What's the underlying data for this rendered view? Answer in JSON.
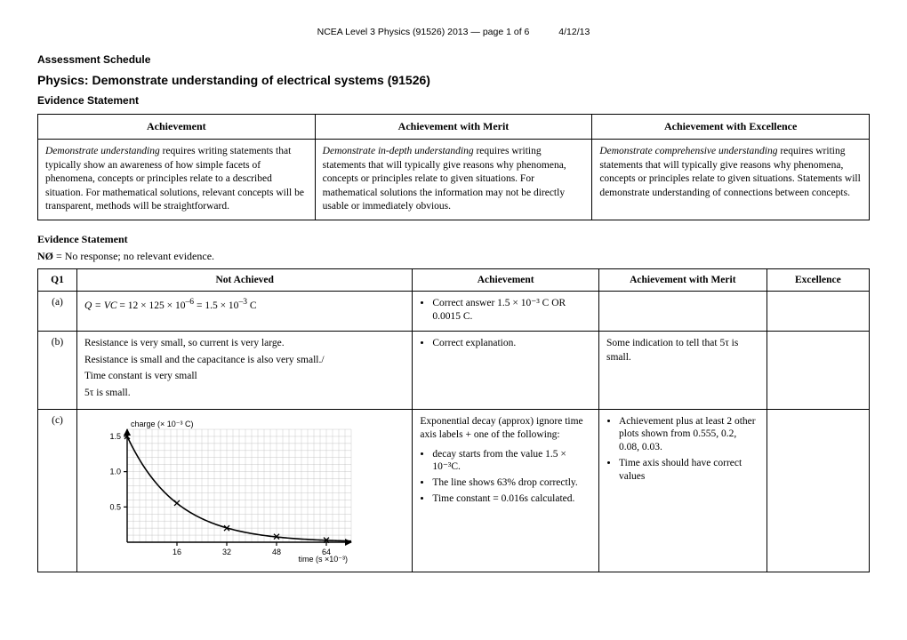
{
  "header": {
    "text": "NCEA Level 3 Physics (91526) 2013 — page 1 of 6",
    "date": "4/12/13"
  },
  "titles": {
    "schedule": "Assessment Schedule",
    "main": "Physics: Demonstrate understanding of electrical systems (91526)",
    "evidence": "Evidence Statement"
  },
  "criteria": {
    "headers": [
      "Achievement",
      "Achievement with Merit",
      "Achievement with Excellence"
    ],
    "cells": [
      {
        "lead": "Demonstrate understanding",
        "body": " requires writing statements that typically show an awareness of how simple facets of phenomena, concepts or principles relate to a described situation.  For mathematical solutions, relevant concepts will be transparent, methods will be straightforward."
      },
      {
        "lead": "Demonstrate in-depth understanding",
        "body": " requires writing statements that will typically give reasons why phenomena, concepts or principles relate to given situations. For mathematical solutions the information may not be directly usable or immediately obvious."
      },
      {
        "lead": "Demonstrate comprehensive understanding",
        "body": " requires writing statements that will typically give reasons why phenomena, concepts or principles relate to given situations.  Statements will demonstrate understanding of connections between concepts."
      }
    ]
  },
  "legend": {
    "label": "Evidence Statement",
    "key": "NØ",
    "desc": " = No response; no relevant evidence."
  },
  "qtable": {
    "headers": [
      "Q1",
      "Not Achieved",
      "Achievement",
      "Achievement with Merit",
      "Excellence"
    ],
    "rows": [
      {
        "q": "(a)",
        "na_html": "<span class='italic'>Q = VC</span> = 12 × 125 × 10<sup>–6</sup> = 1.5 × 10<sup>–3</sup> C",
        "ach": [
          "Correct answer  1.5 × 10⁻³ C OR 0.0015 C."
        ],
        "merit": [],
        "exc": []
      },
      {
        "q": "(b)",
        "na_lines": [
          "Resistance is very small, so current is very large.",
          "Resistance is small and the capacitance is also very small./",
          "Time constant is very small",
          "5τ  is small."
        ],
        "ach": [
          "Correct explanation."
        ],
        "merit_text": "Some indication to tell that 5τ is small.",
        "exc": []
      },
      {
        "q": "(c)",
        "na_chart": true,
        "ach_lead": "Exponential decay (approx) ignore time axis labels  + one of the following:",
        "ach": [
          "decay starts from the value 1.5 × 10⁻³C.",
          "The line shows 63% drop correctly.",
          "Time constant = 0.016s calculated."
        ],
        "merit": [
          "Achievement plus at least 2 other plots shown from 0.555, 0.2, 0.08, 0.03.",
          "Time axis should have correct values"
        ],
        "exc": []
      }
    ]
  },
  "chart": {
    "ylabel": "charge (× 10⁻³ C)",
    "xlabel": "time (s ×10⁻³)",
    "yticks": [
      "0.5",
      "1.0",
      "1.5"
    ],
    "xticks": [
      "16",
      "32",
      "48",
      "64"
    ],
    "xlim": [
      0,
      72
    ],
    "ylim": [
      0,
      1.6
    ],
    "grid_color": "#bbbbbb",
    "axis_color": "#000000",
    "curve_color": "#000000",
    "points": [
      {
        "x": 0,
        "y": 1.5
      },
      {
        "x": 16,
        "y": 0.555
      },
      {
        "x": 32,
        "y": 0.2
      },
      {
        "x": 48,
        "y": 0.08
      },
      {
        "x": 64,
        "y": 0.03
      }
    ]
  }
}
